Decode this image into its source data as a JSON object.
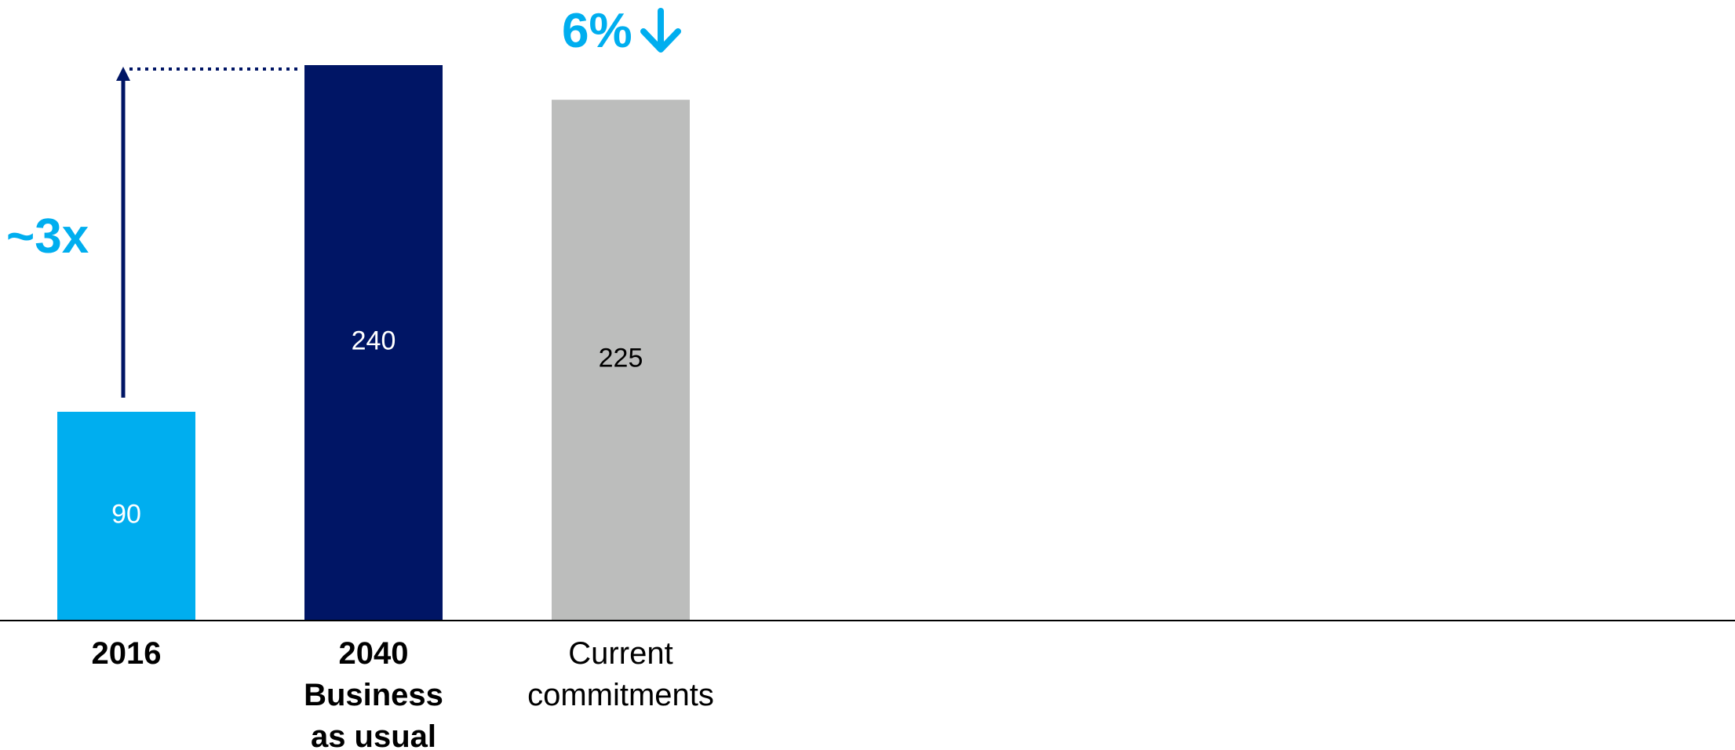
{
  "chart_data": {
    "type": "bar",
    "categories": [
      {
        "lines": [
          "2016"
        ],
        "bold": true
      },
      {
        "lines": [
          "2040",
          "Business",
          "as usual"
        ],
        "bold": true
      },
      {
        "lines": [
          "Current",
          "commitments"
        ],
        "bold": false
      }
    ],
    "values": [
      90,
      240,
      225
    ],
    "value_labels": [
      "90",
      "240",
      "225"
    ],
    "bar_colors": [
      "#00AEEF",
      "#001565",
      "#BCBDBC"
    ],
    "value_label_colors": [
      "#ffffff",
      "#ffffff",
      "#000000"
    ],
    "ylim": [
      0,
      240
    ],
    "grid": false,
    "annotations": {
      "growth": {
        "text": "~3x",
        "from_category": 0,
        "to_category": 1,
        "color": "#00AEEF",
        "arrow_color": "#001565"
      },
      "reduction": {
        "text": "6%",
        "arrow": "down-arrow-icon",
        "category": 2,
        "color": "#00AEEF"
      }
    }
  }
}
